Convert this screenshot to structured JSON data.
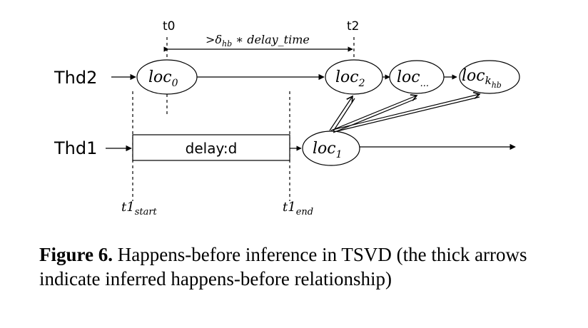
{
  "threads": {
    "thd2": "Thd2",
    "thd1": "Thd1"
  },
  "time_marks": {
    "t0": "t0",
    "t2": "t2",
    "t1_start_base": "t1",
    "t1_start_sub": "start",
    "t1_end_base": "t1",
    "t1_end_sub": "end"
  },
  "interval_label": {
    "gt": ">",
    "delta": "δ",
    "delta_sub": "hb",
    "op": " ∗ ",
    "var": "delay_time"
  },
  "nodes": {
    "loc0": {
      "base": "loc",
      "sub": "0"
    },
    "loc2": {
      "base": "loc",
      "sub": "2"
    },
    "loc_dots": {
      "base": "loc",
      "sub": "..."
    },
    "loc_khb": {
      "base": "loc",
      "sub": "k",
      "subsub": "hb"
    },
    "loc1": {
      "base": "loc",
      "sub": "1"
    }
  },
  "delay_box": {
    "label": "delay:d"
  },
  "caption": {
    "label": "Figure 6.",
    "text": " Happens-before inference in TSVD (the thick arrows indicate inferred happens-before relationship)"
  }
}
